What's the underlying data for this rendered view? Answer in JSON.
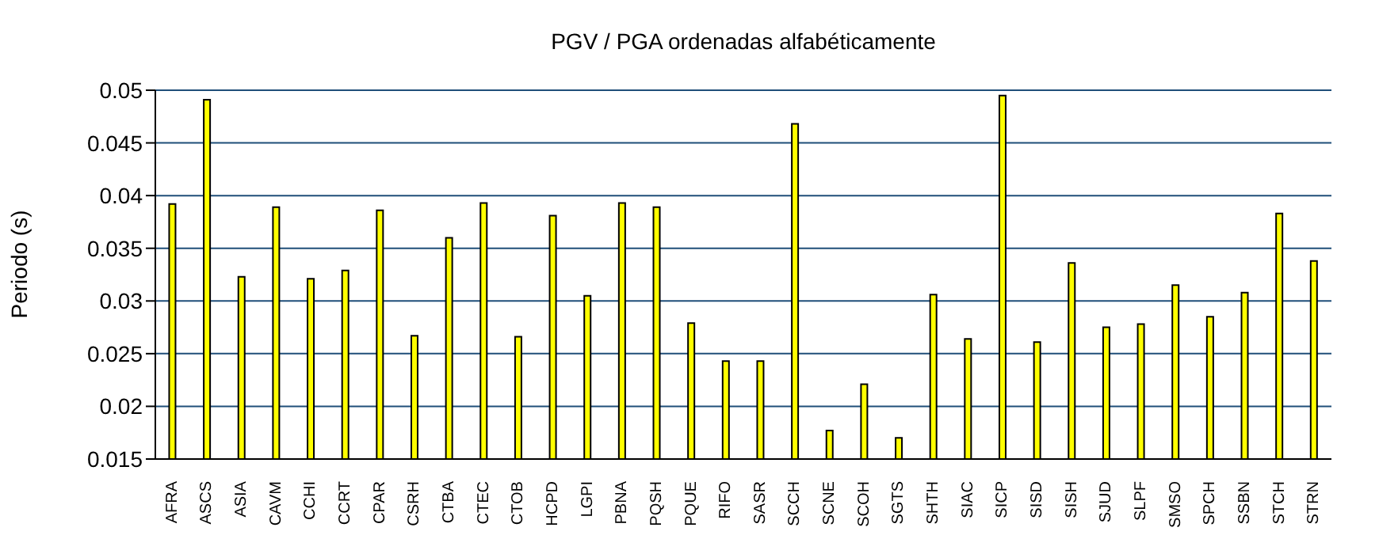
{
  "chart_data": {
    "type": "bar",
    "title": "PGV / PGA ordenadas alfabéticamente",
    "ylabel": "Periodo (s)",
    "categories": [
      "AFRA",
      "ASCS",
      "ASIA",
      "CAVM",
      "CCHI",
      "CCRT",
      "CPAR",
      "CSRH",
      "CTBA",
      "CTEC",
      "CTOB",
      "HCPD",
      "LGPI",
      "PBNA",
      "PQSH",
      "PQUE",
      "RIFO",
      "SASR",
      "SCCH",
      "SCNE",
      "SCOH",
      "SGTS",
      "SHTH",
      "SIAC",
      "SICP",
      "SISD",
      "SISH",
      "SJUD",
      "SLPF",
      "SMSO",
      "SPCH",
      "SSBN",
      "STCH",
      "STRN"
    ],
    "values": [
      0.0392,
      0.0491,
      0.0323,
      0.0389,
      0.0321,
      0.0329,
      0.0386,
      0.0267,
      0.036,
      0.0393,
      0.0266,
      0.0381,
      0.0305,
      0.0393,
      0.0389,
      0.0279,
      0.0243,
      0.0243,
      0.0468,
      0.0177,
      0.0221,
      0.017,
      0.0306,
      0.0264,
      0.0495,
      0.0261,
      0.0336,
      0.0275,
      0.0278,
      0.0315,
      0.0285,
      0.0308,
      0.0383,
      0.0338
    ],
    "color": "#ffff00",
    "ylim": [
      0.015,
      0.05
    ],
    "yticks": [
      0.015,
      0.02,
      0.025,
      0.03,
      0.035,
      0.04,
      0.045,
      0.05
    ],
    "grid": "y",
    "legend": false
  }
}
